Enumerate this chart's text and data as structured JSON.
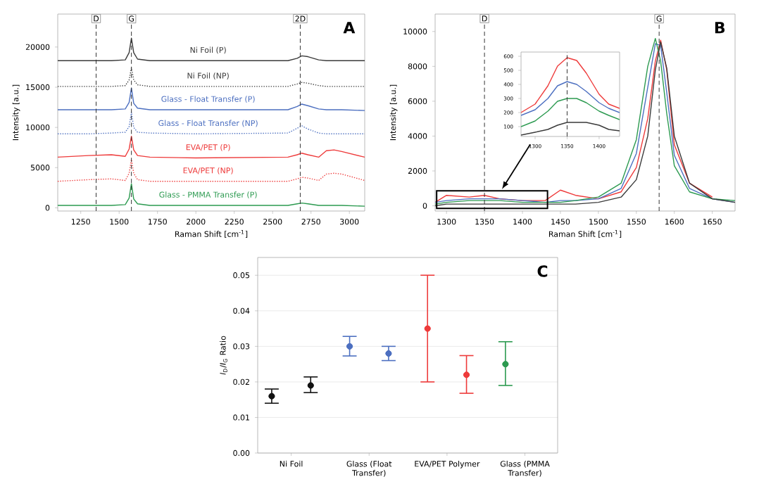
{
  "chart_data": [
    {
      "type": "line",
      "xlabel": "Raman Shift [cm$^{-1}$]",
      "ylabel": "Intensity [a.u.]",
      "annotations": [
        "A"
      ],
      "x": [
        1100,
        1300,
        1450,
        1540,
        1565,
        1580,
        1595,
        1620,
        1700,
        2000,
        2600,
        2660,
        2690,
        2730,
        2800,
        2850,
        2900,
        2950,
        3100
      ],
      "xlim": [
        1100,
        3100
      ],
      "xticks": [
        1250,
        1500,
        1750,
        2000,
        2250,
        2500,
        2750,
        3000
      ],
      "ylim": [
        -400,
        24100
      ],
      "yticks": [
        0,
        5000,
        10000,
        15000,
        20000
      ],
      "line_style": "solid",
      "ref_lines": [
        {
          "axis": "x",
          "value": 1350,
          "label": "D"
        },
        {
          "axis": "x",
          "value": 1580,
          "label": "G"
        },
        {
          "axis": "x",
          "value": 2680,
          "label": "2D"
        }
      ],
      "series": [
        {
          "name": "Ni Foil (P)",
          "color": "#3a3a3a",
          "values": [
            18300,
            18300,
            18300,
            18400,
            19300,
            21100,
            19300,
            18500,
            18300,
            18300,
            18300,
            18600,
            18900,
            18800,
            18400,
            18300,
            18300,
            18300,
            18300
          ]
        },
        {
          "name": "Ni Foil (NP)",
          "color": "#3a3a3a",
          "line_style": "dotted",
          "values": [
            15100,
            15100,
            15100,
            15200,
            15900,
            17400,
            15900,
            15300,
            15100,
            15100,
            15100,
            15400,
            15600,
            15500,
            15200,
            15100,
            15100,
            15100,
            15100
          ]
        },
        {
          "name": "Glass - Float Transfer (P)",
          "color": "#4c6fc0",
          "values": [
            12200,
            12200,
            12200,
            12300,
            13100,
            14900,
            13000,
            12400,
            12200,
            12200,
            12200,
            12600,
            12900,
            12700,
            12300,
            12200,
            12200,
            12200,
            12100
          ]
        },
        {
          "name": "Glass - Float Transfer (NP)",
          "color": "#4c6fc0",
          "line_style": "dotted",
          "values": [
            9200,
            9200,
            9300,
            9400,
            10100,
            11900,
            10000,
            9400,
            9300,
            9200,
            9300,
            9900,
            10200,
            9800,
            9300,
            9200,
            9200,
            9200,
            9200
          ]
        },
        {
          "name": "EVA/PET (P)",
          "color": "#ee3a3a",
          "values": [
            6300,
            6500,
            6600,
            6400,
            7300,
            8900,
            7200,
            6500,
            6300,
            6200,
            6300,
            6600,
            6800,
            6600,
            6300,
            7100,
            7200,
            7000,
            6300
          ]
        },
        {
          "name": "EVA/PET (NP)",
          "color": "#ee3a3a",
          "line_style": "dotted",
          "values": [
            3300,
            3500,
            3600,
            3400,
            4300,
            6000,
            4300,
            3500,
            3300,
            3300,
            3300,
            3600,
            3800,
            3700,
            3400,
            4200,
            4300,
            4200,
            3400
          ]
        },
        {
          "name": "Glass - PMMA Transfer (P)",
          "color": "#2c9a50",
          "values": [
            300,
            300,
            300,
            400,
            1200,
            3000,
            1100,
            500,
            300,
            300,
            300,
            500,
            600,
            500,
            300,
            300,
            300,
            300,
            200
          ]
        }
      ]
    },
    {
      "type": "line",
      "xlabel": "Raman Shift [cm$^{-1}$]",
      "ylabel": "Intensity [a.u.]",
      "annotations": [
        "B"
      ],
      "x": [
        1285,
        1300,
        1330,
        1350,
        1370,
        1400,
        1430,
        1450,
        1470,
        1500,
        1530,
        1550,
        1565,
        1575,
        1582,
        1590,
        1600,
        1620,
        1650,
        1680
      ],
      "xlim": [
        1285,
        1680
      ],
      "xticks": [
        1300,
        1350,
        1400,
        1450,
        1500,
        1550,
        1600,
        1650
      ],
      "ylim": [
        -300,
        11000
      ],
      "yticks": [
        0,
        2000,
        4000,
        6000,
        8000,
        10000
      ],
      "ref_lines": [
        {
          "axis": "x",
          "value": 1350,
          "label": "D"
        },
        {
          "axis": "x",
          "value": 1580,
          "label": "G"
        }
      ],
      "series": [
        {
          "color": "#ee3a3a",
          "values": [
            200,
            600,
            500,
            600,
            400,
            300,
            300,
            900,
            600,
            400,
            800,
            2200,
            5000,
            8300,
            9500,
            7800,
            3500,
            1300,
            500,
            null
          ]
        },
        {
          "color": "#4c6fc0",
          "values": [
            200,
            300,
            400,
            400,
            400,
            300,
            200,
            300,
            300,
            400,
            1000,
            3000,
            6800,
            9300,
            9200,
            6500,
            2900,
            1000,
            400,
            200
          ]
        },
        {
          "color": "#2c9a50",
          "values": [
            100,
            200,
            300,
            300,
            300,
            200,
            200,
            200,
            300,
            500,
            1300,
            3800,
            8000,
            9600,
            8300,
            5300,
            2300,
            800,
            400,
            300
          ]
        },
        {
          "color": "#3a3a3a",
          "values": [
            0,
            100,
            100,
            100,
            100,
            100,
            100,
            100,
            100,
            200,
            500,
            1500,
            4000,
            7800,
            9400,
            7900,
            4000,
            1300,
            400,
            200
          ]
        }
      ]
    },
    {
      "type": "line",
      "x": [
        1278,
        1300,
        1320,
        1335,
        1350,
        1365,
        1380,
        1400,
        1415,
        1432
      ],
      "xlim": [
        1278,
        1432
      ],
      "xticks": [
        1300,
        1350,
        1400
      ],
      "ylim": [
        30,
        630
      ],
      "yticks": [
        100,
        200,
        300,
        400,
        500,
        600
      ],
      "ref_lines": [
        {
          "axis": "x",
          "value": 1350
        }
      ],
      "series": [
        {
          "color": "#ee3a3a",
          "values": [
            200,
            260,
            390,
            530,
            590,
            570,
            480,
            330,
            260,
            230
          ]
        },
        {
          "color": "#4c6fc0",
          "values": [
            180,
            220,
            300,
            390,
            420,
            400,
            350,
            270,
            230,
            200
          ]
        },
        {
          "color": "#2c9a50",
          "values": [
            100,
            140,
            210,
            280,
            300,
            300,
            270,
            210,
            180,
            150
          ]
        },
        {
          "color": "#3a3a3a",
          "values": [
            40,
            60,
            80,
            110,
            130,
            130,
            130,
            110,
            80,
            70
          ]
        }
      ]
    },
    {
      "type": "scatter",
      "ylabel": "*I*$_{D}$/*I*$_{G}$ Ratio",
      "annotations": [
        "C"
      ],
      "grid": "y",
      "categories": [
        "Ni Foil",
        "Glass (Float Transfer)",
        "EVA/PET Polymer",
        "Glass (PMMA Transfer)"
      ],
      "ylim": [
        0,
        0.055
      ],
      "yticks": [
        {
          "value": 0,
          "label": "0.00"
        },
        {
          "value": 0.01,
          "label": "0.01"
        },
        {
          "value": 0.02,
          "label": "0.02"
        },
        {
          "value": 0.03,
          "label": "0.03"
        },
        {
          "value": 0.04,
          "label": "0.04"
        },
        {
          "value": 0.05,
          "label": "0.05"
        }
      ],
      "series": [
        {
          "marker": "circle",
          "colors": [
            "#111111",
            "#4c6fc0",
            "#ee3a3a",
            "#2c9a50"
          ],
          "values": [
            0.016,
            0.03,
            0.035,
            0.025
          ],
          "errors": [
            [
              0.014,
              0.018
            ],
            [
              0.0273,
              0.0328
            ],
            [
              0.02,
              0.05
            ],
            [
              0.019,
              0.0313
            ]
          ]
        },
        {
          "marker": "circle",
          "colors": [
            "#111111",
            "#4c6fc0",
            "#ee3a3a",
            null
          ],
          "values": [
            0.019,
            0.028,
            0.022,
            null
          ],
          "errors": [
            [
              0.017,
              0.0214
            ],
            [
              0.026,
              0.03
            ],
            [
              0.0168,
              0.0274
            ],
            null
          ]
        }
      ]
    }
  ]
}
